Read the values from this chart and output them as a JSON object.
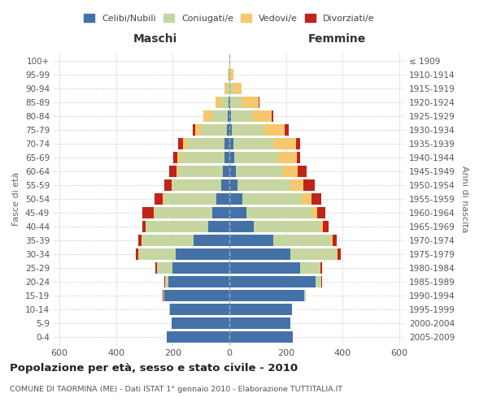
{
  "age_groups": [
    "0-4",
    "5-9",
    "10-14",
    "15-19",
    "20-24",
    "25-29",
    "30-34",
    "35-39",
    "40-44",
    "45-49",
    "50-54",
    "55-59",
    "60-64",
    "65-69",
    "70-74",
    "75-79",
    "80-84",
    "85-89",
    "90-94",
    "95-99",
    "100+"
  ],
  "birth_years": [
    "2005-2009",
    "2000-2004",
    "1995-1999",
    "1990-1994",
    "1985-1989",
    "1980-1984",
    "1975-1979",
    "1970-1974",
    "1965-1969",
    "1960-1964",
    "1955-1959",
    "1950-1954",
    "1945-1949",
    "1940-1944",
    "1935-1939",
    "1930-1934",
    "1925-1929",
    "1920-1924",
    "1915-1919",
    "1910-1914",
    "≤ 1909"
  ],
  "male_celibi": [
    220,
    205,
    210,
    230,
    215,
    200,
    190,
    125,
    75,
    60,
    45,
    30,
    22,
    18,
    16,
    10,
    6,
    4,
    1,
    1,
    0
  ],
  "male_coniugati": [
    0,
    0,
    1,
    3,
    12,
    55,
    130,
    185,
    220,
    205,
    185,
    170,
    160,
    155,
    130,
    90,
    55,
    25,
    8,
    2,
    0
  ],
  "male_vedovi": [
    0,
    0,
    0,
    0,
    0,
    1,
    1,
    1,
    2,
    3,
    5,
    5,
    5,
    12,
    18,
    20,
    30,
    20,
    8,
    2,
    0
  ],
  "male_divorziati": [
    0,
    0,
    0,
    1,
    2,
    5,
    8,
    10,
    10,
    40,
    30,
    25,
    25,
    12,
    18,
    8,
    2,
    0,
    0,
    0,
    0
  ],
  "female_celibi": [
    225,
    215,
    220,
    265,
    305,
    250,
    215,
    155,
    85,
    60,
    45,
    30,
    22,
    18,
    15,
    10,
    5,
    3,
    1,
    1,
    0
  ],
  "female_coniugati": [
    0,
    0,
    1,
    5,
    18,
    70,
    165,
    205,
    235,
    230,
    210,
    185,
    165,
    155,
    140,
    110,
    75,
    40,
    12,
    3,
    0
  ],
  "female_vedovi": [
    0,
    0,
    0,
    0,
    1,
    2,
    2,
    5,
    10,
    20,
    35,
    45,
    55,
    65,
    80,
    75,
    70,
    60,
    30,
    10,
    2
  ],
  "female_divorziati": [
    0,
    0,
    0,
    0,
    2,
    5,
    10,
    15,
    20,
    30,
    35,
    40,
    30,
    12,
    15,
    15,
    5,
    2,
    0,
    0,
    0
  ],
  "color_celibi": "#4472a8",
  "color_coniugati": "#c5d6a0",
  "color_vedovi": "#f5c86e",
  "color_divorziati": "#c0231a",
  "title": "Popolazione per età, sesso e stato civile - 2010",
  "subtitle": "COMUNE DI TAORMINA (ME) - Dati ISTAT 1° gennaio 2010 - Elaborazione TUTTITALIA.IT",
  "label_maschi": "Maschi",
  "label_femmine": "Femmine",
  "ylabel_left": "Fasce di età",
  "ylabel_right": "Anni di nascita",
  "xlim": 620,
  "bg_color": "#ffffff",
  "grid_color": "#cccccc"
}
